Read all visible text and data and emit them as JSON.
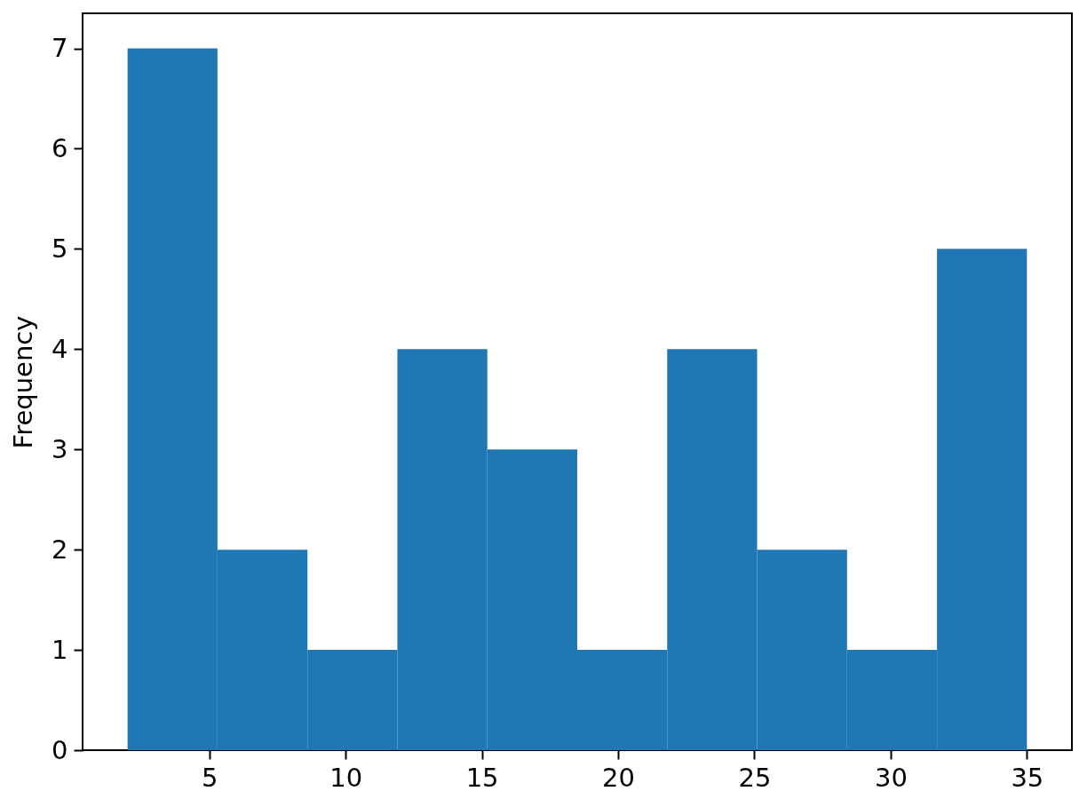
{
  "chart_data": {
    "type": "histogram",
    "ylabel": "Frequency",
    "bins": [
      2,
      5.3,
      8.6,
      11.9,
      15.2,
      18.5,
      21.8,
      25.1,
      28.4,
      31.7,
      35
    ],
    "values": [
      7,
      2,
      1,
      4,
      3,
      1,
      4,
      2,
      1,
      5
    ],
    "color": "#1f77b4",
    "xlim": [
      0.35,
      36.65
    ],
    "ylim": [
      0,
      7.35
    ],
    "xticks": [
      5,
      10,
      15,
      20,
      25,
      30,
      35
    ],
    "yticks": [
      0,
      1,
      2,
      3,
      4,
      5,
      6,
      7
    ]
  }
}
